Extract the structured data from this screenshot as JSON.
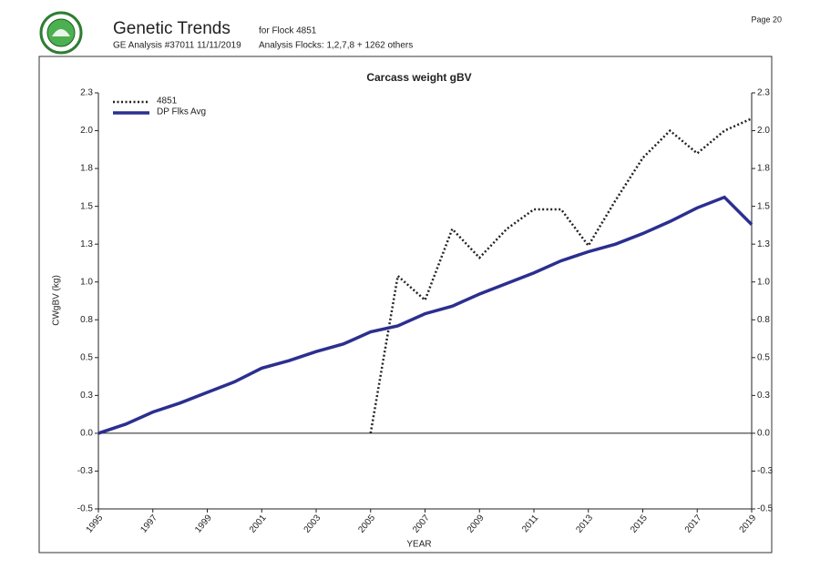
{
  "header": {
    "title": "Genetic Trends",
    "subtitle": "for Flock 4851",
    "analysis": "GE Analysis #37011 11/11/2019",
    "flocks": "Analysis Flocks: 1,2,7,8 + 1262 others",
    "page": "Page 20"
  },
  "chart_data": {
    "type": "line",
    "title": "Carcass weight gBV",
    "x_label": "YEAR",
    "y_label": "CWgBV (kg)",
    "x": [
      1995,
      1996,
      1997,
      1998,
      1999,
      2000,
      2001,
      2002,
      2003,
      2004,
      2005,
      2006,
      2007,
      2008,
      2009,
      2010,
      2011,
      2012,
      2013,
      2014,
      2015,
      2016,
      2017,
      2018,
      2019
    ],
    "series": [
      {
        "name": "4851",
        "color": "#222222",
        "style": "dotted",
        "values": [
          null,
          null,
          null,
          null,
          null,
          null,
          null,
          null,
          null,
          null,
          0,
          1.04,
          0.88,
          1.35,
          1.16,
          1.35,
          1.48,
          1.48,
          1.24,
          1.54,
          1.82,
          2.0,
          1.85,
          2.0,
          2.08
        ]
      },
      {
        "name": "DP Flks Avg",
        "color": "#2b2f8f",
        "style": "solid",
        "values": [
          0,
          0.06,
          0.14,
          0.2,
          0.27,
          0.34,
          0.43,
          0.48,
          0.54,
          0.59,
          0.67,
          0.71,
          0.79,
          0.84,
          0.92,
          0.99,
          1.06,
          1.14,
          1.2,
          1.25,
          1.32,
          1.4,
          1.49,
          1.56,
          1.38
        ]
      }
    ],
    "xlim": [
      1995,
      2019
    ],
    "xticks": [
      1995,
      1997,
      1999,
      2001,
      2003,
      2005,
      2007,
      2009,
      2011,
      2013,
      2015,
      2017,
      2019
    ],
    "ylim": [
      -0.5,
      2.25
    ],
    "yticks": [
      -0.5,
      {
        "value": -0.25,
        "label": "-0.3"
      },
      {
        "value": 0,
        "label": "0.0"
      },
      {
        "value": 0.25,
        "label": "0.3"
      },
      0.5,
      {
        "value": 0.75,
        "label": "0.8"
      },
      {
        "value": 1,
        "label": "1.0"
      },
      {
        "value": 1.25,
        "label": "1.3"
      },
      1.5,
      {
        "value": 1.75,
        "label": "1.8"
      },
      {
        "value": 2,
        "label": "2.0"
      },
      {
        "value": 2.25,
        "label": "2.3"
      }
    ],
    "legend": "top-left"
  }
}
